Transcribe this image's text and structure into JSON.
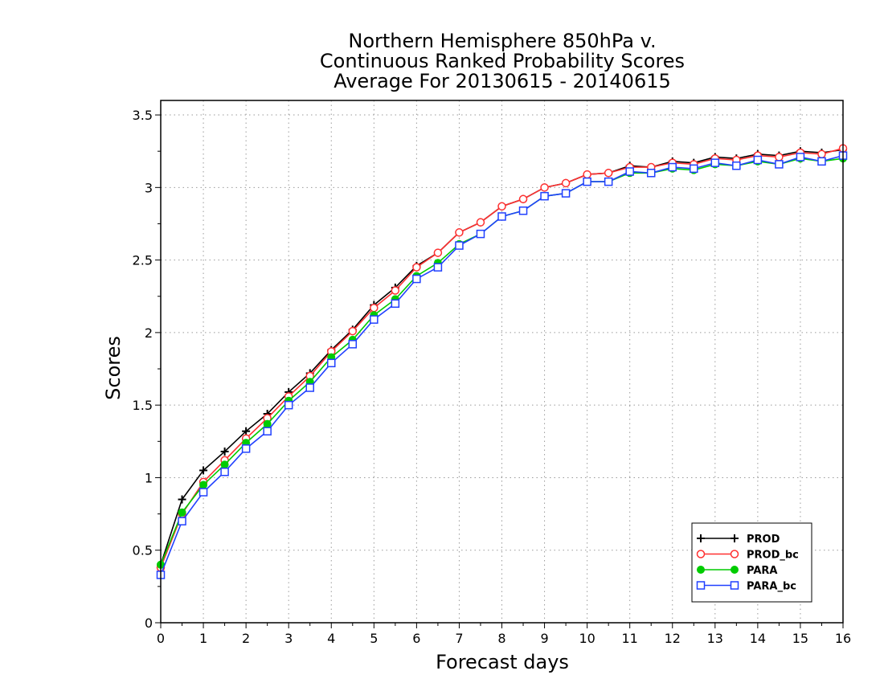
{
  "chart_data": {
    "type": "line",
    "title": [
      "Northern Hemisphere 850hPa v.",
      "Continuous Ranked Probability Scores",
      "Average For 20130615 - 20140615"
    ],
    "xlabel": "Forecast days",
    "ylabel": "Scores",
    "xlim": [
      0,
      16
    ],
    "ylim": [
      0,
      3.6
    ],
    "xticks": [
      0,
      1,
      2,
      3,
      4,
      5,
      6,
      7,
      8,
      9,
      10,
      11,
      12,
      13,
      14,
      15,
      16
    ],
    "xtick_labels": [
      "0",
      "1",
      "2",
      "3",
      "4",
      "5",
      "6",
      "7",
      "8",
      "9",
      "10",
      "11",
      "12",
      "13",
      "14",
      "15",
      "16"
    ],
    "yticks": [
      0,
      0.5,
      1,
      1.5,
      2,
      2.5,
      3,
      3.5
    ],
    "ytick_labels": [
      "0",
      "0.5",
      "1",
      "1.5",
      "2",
      "2.5",
      "3",
      "3.5"
    ],
    "grid": true,
    "legend_position": "bottom-right",
    "x": [
      0,
      0.5,
      1,
      1.5,
      2,
      2.5,
      3,
      3.5,
      4,
      4.5,
      5,
      5.5,
      6,
      6.5,
      7,
      7.5,
      8,
      8.5,
      9,
      9.5,
      10,
      10.5,
      11,
      11.5,
      12,
      12.5,
      13,
      13.5,
      14,
      14.5,
      15,
      15.5,
      16
    ],
    "series": [
      {
        "name": "PROD",
        "color": "#000000",
        "marker": "plus",
        "values": [
          0.4,
          0.85,
          1.05,
          1.18,
          1.32,
          1.44,
          1.59,
          1.72,
          1.88,
          2.02,
          2.19,
          2.31,
          2.46,
          2.55,
          2.69,
          2.76,
          2.87,
          2.92,
          3.0,
          3.03,
          3.09,
          3.1,
          3.15,
          3.14,
          3.18,
          3.17,
          3.21,
          3.2,
          3.23,
          3.22,
          3.25,
          3.24,
          3.26
        ]
      },
      {
        "name": "PROD_bc",
        "color": "#ff3030",
        "marker": "circle-open",
        "values": [
          0.38,
          0.75,
          0.97,
          1.12,
          1.27,
          1.41,
          1.56,
          1.7,
          1.87,
          2.01,
          2.17,
          2.29,
          2.45,
          2.55,
          2.69,
          2.76,
          2.87,
          2.92,
          3.0,
          3.03,
          3.09,
          3.1,
          3.14,
          3.14,
          3.17,
          3.16,
          3.2,
          3.19,
          3.22,
          3.21,
          3.24,
          3.23,
          3.27
        ]
      },
      {
        "name": "PARA",
        "color": "#00cc00",
        "marker": "circle-filled",
        "values": [
          0.4,
          0.76,
          0.95,
          1.09,
          1.24,
          1.37,
          1.53,
          1.66,
          1.83,
          1.95,
          2.12,
          2.23,
          2.39,
          2.48,
          2.61,
          2.68,
          2.8,
          2.84,
          2.94,
          2.96,
          3.04,
          3.04,
          3.1,
          3.1,
          3.13,
          3.12,
          3.16,
          3.15,
          3.18,
          3.16,
          3.2,
          3.18,
          3.2
        ]
      },
      {
        "name": "PARA_bc",
        "color": "#2040ff",
        "marker": "square-open",
        "values": [
          0.33,
          0.7,
          0.9,
          1.04,
          1.2,
          1.32,
          1.5,
          1.62,
          1.79,
          1.92,
          2.09,
          2.2,
          2.37,
          2.45,
          2.6,
          2.68,
          2.8,
          2.84,
          2.94,
          2.96,
          3.04,
          3.04,
          3.11,
          3.1,
          3.14,
          3.13,
          3.17,
          3.15,
          3.19,
          3.16,
          3.21,
          3.18,
          3.22
        ]
      }
    ]
  }
}
